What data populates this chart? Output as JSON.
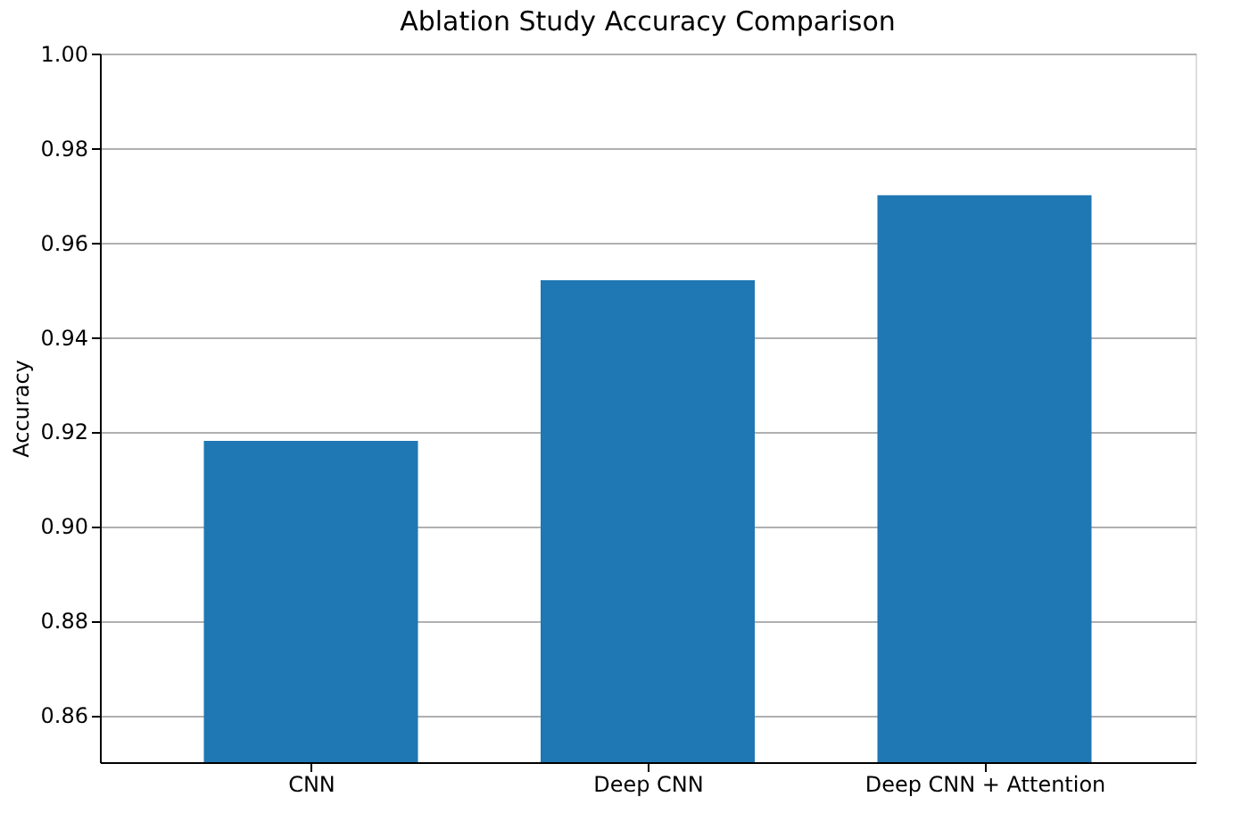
{
  "chart_data": {
    "type": "bar",
    "title": "Ablation Study Accuracy Comparison",
    "ylabel": "Accuracy",
    "categories": [
      "CNN",
      "Deep CNN",
      "Deep CNN + Attention"
    ],
    "values": [
      0.918,
      0.952,
      0.97
    ],
    "color": "#1f77b4",
    "ylim": [
      0.85,
      1.0
    ],
    "yticks": [
      0.86,
      0.88,
      {
        "value": 0.9,
        "label": "0.90"
      },
      0.92,
      0.94,
      0.96,
      0.98,
      {
        "value": 1,
        "label": "1.00"
      }
    ],
    "grid": "y"
  }
}
